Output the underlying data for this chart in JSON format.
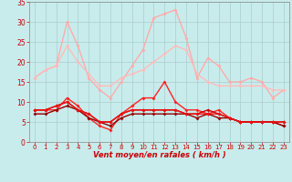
{
  "x": [
    0,
    1,
    2,
    3,
    4,
    5,
    6,
    7,
    8,
    9,
    10,
    11,
    12,
    13,
    14,
    15,
    16,
    17,
    18,
    19,
    20,
    21,
    22,
    23
  ],
  "series": [
    {
      "name": "lightest_pink",
      "color": "#ffaaaa",
      "lw": 1.0,
      "values": [
        16,
        18,
        19,
        30,
        24,
        16,
        13,
        11,
        15,
        19,
        23,
        31,
        32,
        33,
        26,
        16,
        21,
        19,
        15,
        15,
        16,
        15,
        11,
        13
      ]
    },
    {
      "name": "light_pink_trend",
      "color": "#ffbbbb",
      "lw": 1.0,
      "values": [
        16,
        18,
        19,
        24,
        20,
        17,
        14,
        14,
        16,
        17,
        18,
        20,
        22,
        24,
        23,
        17,
        15,
        14,
        14,
        14,
        14,
        14,
        13,
        13
      ]
    },
    {
      "name": "bright_red",
      "color": "#ff2222",
      "lw": 1.0,
      "values": [
        8,
        8,
        8,
        11,
        9,
        6,
        4,
        3,
        7,
        9,
        11,
        11,
        15,
        10,
        8,
        8,
        7,
        8,
        6,
        5,
        5,
        5,
        5,
        4
      ]
    },
    {
      "name": "dark_red_1",
      "color": "#cc0000",
      "lw": 1.0,
      "values": [
        8,
        8,
        9,
        10,
        8,
        7,
        5,
        5,
        7,
        8,
        8,
        8,
        8,
        8,
        7,
        7,
        8,
        7,
        6,
        5,
        5,
        5,
        5,
        5
      ]
    },
    {
      "name": "dark_red_2",
      "color": "#990000",
      "lw": 1.0,
      "values": [
        7,
        7,
        8,
        9,
        8,
        6,
        5,
        4,
        6,
        7,
        7,
        7,
        7,
        7,
        7,
        6,
        7,
        6,
        6,
        5,
        5,
        5,
        5,
        4
      ]
    },
    {
      "name": "medium_red",
      "color": "#ee1111",
      "lw": 1.0,
      "values": [
        8,
        8,
        9,
        10,
        8,
        7,
        5,
        5,
        7,
        8,
        8,
        8,
        8,
        8,
        7,
        7,
        7,
        7,
        6,
        5,
        5,
        5,
        5,
        5
      ]
    }
  ],
  "xlabel": "Vent moyen/en rafales ( km/h )",
  "ylim": [
    0,
    35
  ],
  "xlim_left": -0.5,
  "xlim_right": 23.5,
  "yticks": [
    0,
    5,
    10,
    15,
    20,
    25,
    30,
    35
  ],
  "xticks": [
    0,
    1,
    2,
    3,
    4,
    5,
    6,
    7,
    8,
    9,
    10,
    11,
    12,
    13,
    14,
    15,
    16,
    17,
    18,
    19,
    20,
    21,
    22,
    23
  ],
  "background_color": "#c8ecec",
  "grid_color": "#aacccc",
  "xlabel_color": "#cc0000",
  "tick_color": "#cc0000",
  "marker": "D",
  "markersize": 2.0,
  "figsize": [
    3.2,
    2.0
  ],
  "dpi": 100
}
